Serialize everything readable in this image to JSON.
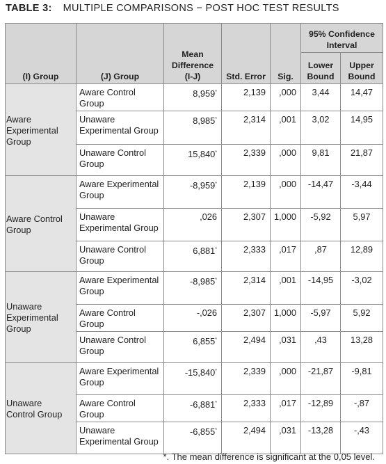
{
  "title": {
    "label": "TABLE 3:",
    "text": "MULTIPLE COMPARISONS − POST HOC TEST RESULTS"
  },
  "table": {
    "headers": {
      "i_group": "(I) Group",
      "j_group": "(J) Group",
      "mean_diff": "Mean Difference (I-J)",
      "std_error": "Std. Error",
      "sig": "Sig.",
      "ci": "95% Confidence Interval",
      "lower": "Lower Bound",
      "upper": "Upper Bound"
    },
    "groups": [
      {
        "name": "Aware Experimental Group",
        "rows": [
          {
            "j": "Aware Control Group",
            "mean_diff": "8,959",
            "mark": "*",
            "std_error": "2,139",
            "sig": ",000",
            "lower": "3,44",
            "upper": "14,47"
          },
          {
            "j": "Unaware Experimental Group",
            "mean_diff": "8,985",
            "mark": "*",
            "std_error": "2,314",
            "sig": ",001",
            "lower": "3,02",
            "upper": "14,95"
          },
          {
            "j": "Unaware Control Group",
            "mean_diff": "15,840",
            "mark": "*",
            "std_error": "2,339",
            "sig": ",000",
            "lower": "9,81",
            "upper": "21,87"
          }
        ]
      },
      {
        "name": "Aware Control Group",
        "rows": [
          {
            "j": "Aware Experimental Group",
            "mean_diff": "-8,959",
            "mark": "*",
            "std_error": "2,139",
            "sig": ",000",
            "lower": "-14,47",
            "upper": "-3,44"
          },
          {
            "j": "Unaware Experimental Group",
            "mean_diff": ",026",
            "std_error": "2,307",
            "sig": "1,000",
            "lower": "-5,92",
            "upper": "5,97"
          },
          {
            "j": "Unaware Control Group",
            "mean_diff": "6,881",
            "mark": "*",
            "std_error": "2,333",
            "sig": ",017",
            "lower": ",87",
            "upper": "12,89"
          }
        ]
      },
      {
        "name": "Unaware Experimental Group",
        "rows": [
          {
            "j": "Aware Experimental Group",
            "mean_diff": "-8,985",
            "mark": "*",
            "std_error": "2,314",
            "sig": ",001",
            "lower": "-14,95",
            "upper": "-3,02"
          },
          {
            "j": "Aware Control Group",
            "mean_diff": "-,026",
            "std_error": "2,307",
            "sig": "1,000",
            "lower": "-5,97",
            "upper": "5,92"
          },
          {
            "j": "Unaware Control Group",
            "mean_diff": "6,855",
            "mark": "*",
            "std_error": "2,494",
            "sig": ",031",
            "lower": ",43",
            "upper": "13,28"
          }
        ]
      },
      {
        "name": "Unaware Control Group",
        "rows": [
          {
            "j": "Aware Experimental Group",
            "mean_diff": "-15,840",
            "mark": "*",
            "std_error": "2,339",
            "sig": ",000",
            "lower": "-21,87",
            "upper": "-9,81"
          },
          {
            "j": "Aware Control Group",
            "mean_diff": "-6,881",
            "mark": "*",
            "std_error": "2,333",
            "sig": ",017",
            "lower": "-12,89",
            "upper": "-,87"
          },
          {
            "j": "Unaware Experimental Group",
            "mean_diff": "-6,855",
            "mark": "*",
            "std_error": "2,494",
            "sig": ",031",
            "lower": "-13,28",
            "upper": "-,43"
          }
        ]
      }
    ]
  },
  "footnote": "*. The mean difference is significant at the 0,05 level."
}
